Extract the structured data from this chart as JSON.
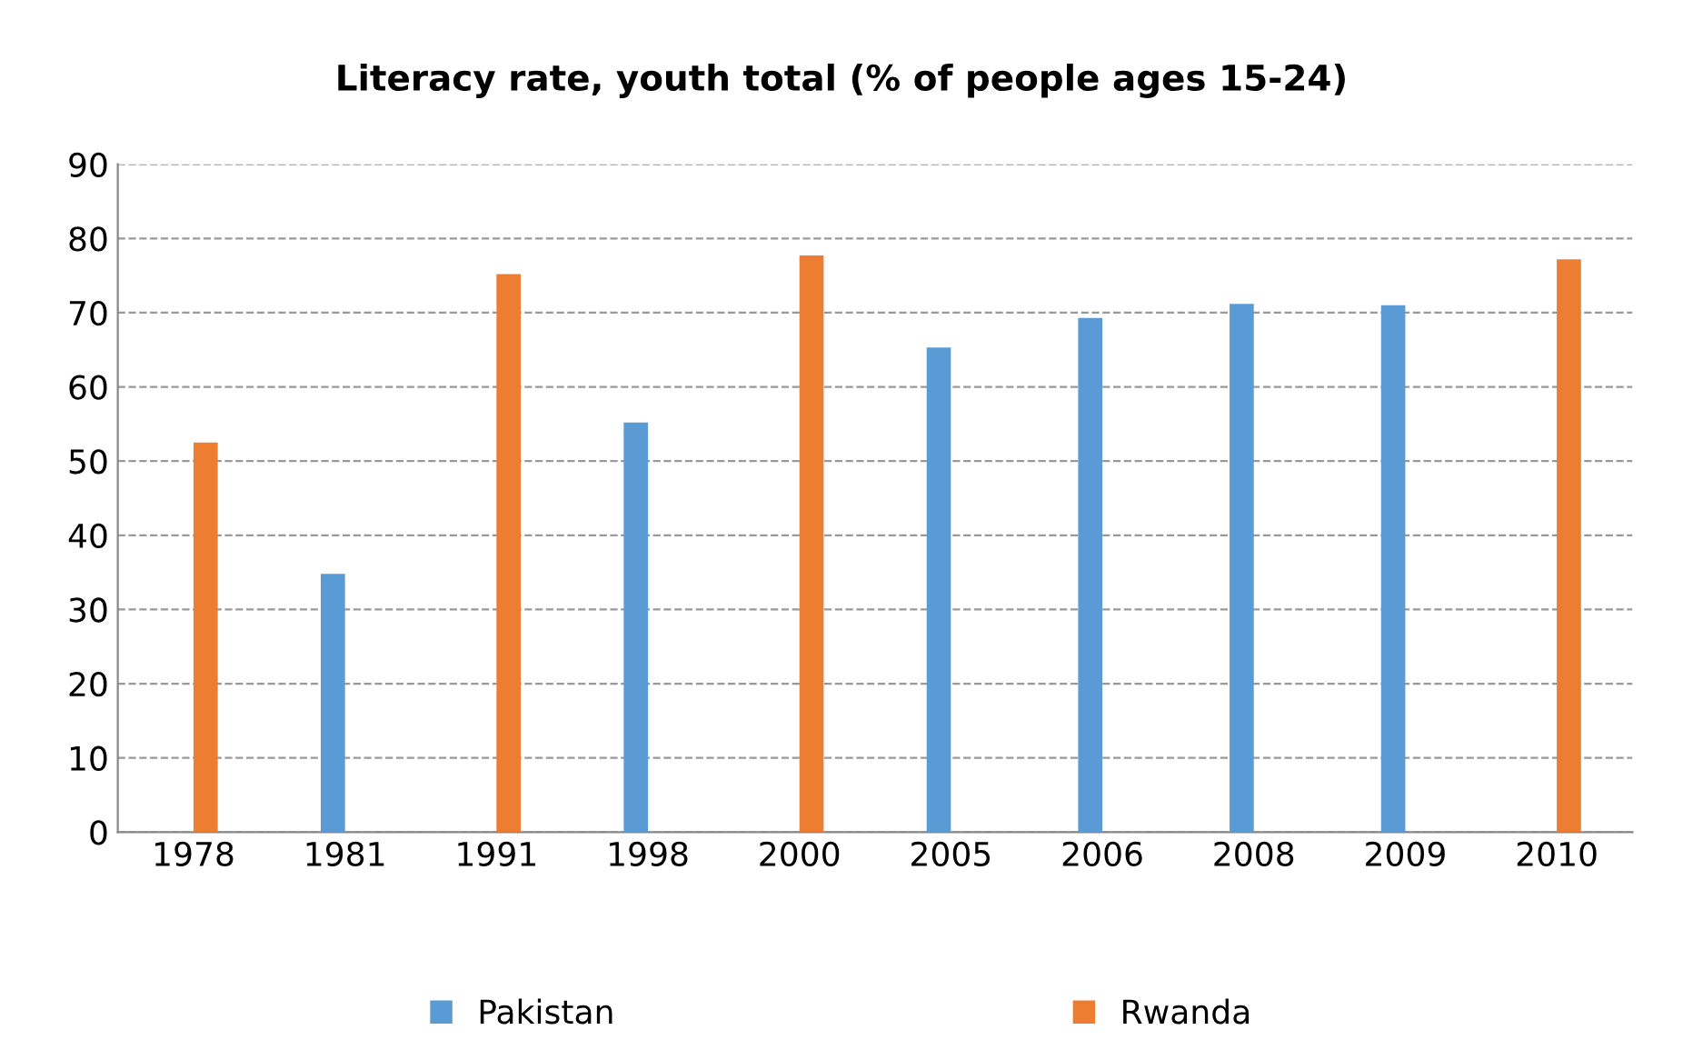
{
  "chart_data": {
    "type": "bar",
    "title": "Literacy rate, youth total (% of people ages 15-24)",
    "categories": [
      "1978",
      "1981",
      "1991",
      "1998",
      "2000",
      "2005",
      "2006",
      "2008",
      "2009",
      "2010"
    ],
    "series": [
      {
        "name": "Pakistan",
        "color": "#5b9bd5",
        "values": [
          null,
          34.8,
          null,
          55.2,
          null,
          65.3,
          69.3,
          71.2,
          71.0,
          null
        ]
      },
      {
        "name": "Rwanda",
        "color": "#ed7d31",
        "values": [
          52.5,
          null,
          75.2,
          null,
          77.7,
          null,
          null,
          null,
          null,
          77.2
        ]
      }
    ],
    "ylim": [
      0,
      90
    ],
    "yticks": [
      0,
      10,
      20,
      30,
      40,
      50,
      60,
      70,
      80,
      90
    ],
    "grid": "y",
    "legend": "bottom"
  }
}
